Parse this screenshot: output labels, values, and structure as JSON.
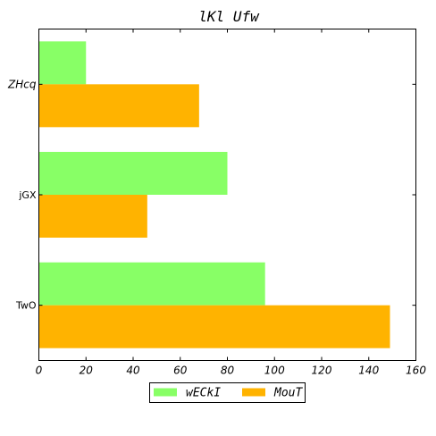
{
  "chart_data": {
    "type": "bar",
    "orientation": "horizontal",
    "title": "lKl Ufw",
    "xlabel": "",
    "ylabel": "",
    "categories": [
      "ZHcq",
      "jGX",
      "TwO"
    ],
    "series": [
      {
        "name": "wECkI",
        "color": "#88ff66",
        "values": [
          20,
          80,
          96
        ]
      },
      {
        "name": "MouT",
        "color": "#ffb300",
        "values": [
          68,
          46,
          149
        ]
      }
    ],
    "xlim": [
      0,
      160
    ],
    "xticks": [
      "0",
      "20",
      "40",
      "60",
      "80",
      "100",
      "120",
      "140",
      "160"
    ],
    "grid": false,
    "legend_position": "bottom-center"
  }
}
